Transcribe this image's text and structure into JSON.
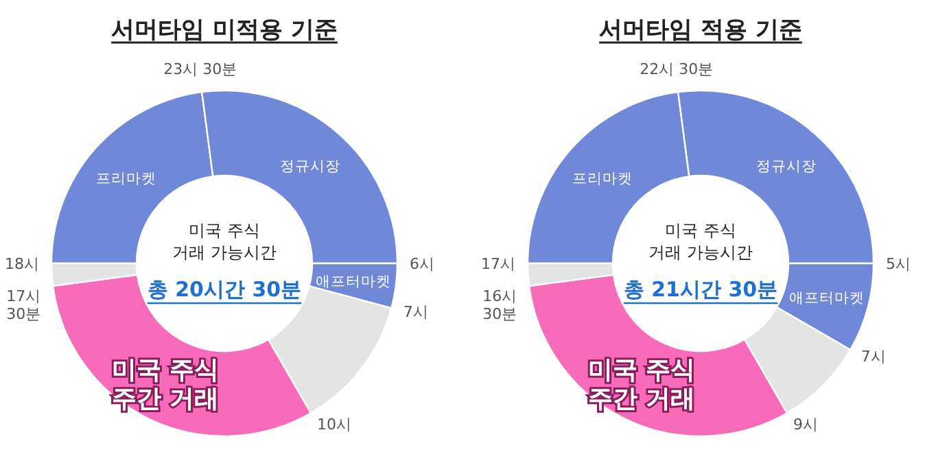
{
  "chart_data": [
    {
      "type": "donut",
      "title": "서머타임 미적용 기준",
      "categories": [
        "프리마켓",
        "정규시장",
        "애프터마켓",
        null,
        "미국 주식 주간 거래",
        null
      ],
      "values": [
        22.92,
        27.08,
        4.17,
        12.5,
        31.25,
        2.08
      ],
      "colors": [
        "#7088d8",
        "#7088d8",
        "#7088d8",
        "#e4e4e4",
        "#f76bb8",
        "#e4e4e4"
      ],
      "annotations": [
        "미국 주식 거래 가능시간",
        "총 20시간 30분",
        "23시 30분",
        "6시",
        "7시",
        "10시",
        "17시 30분",
        "18시"
      ]
    },
    {
      "type": "donut",
      "title": "서머타임 적용 기준",
      "categories": [
        "프리마켓",
        "정규시장",
        "애프터마켓",
        null,
        "미국 주식 주간 거래",
        null
      ],
      "values": [
        22.92,
        27.08,
        8.33,
        8.34,
        31.25,
        2.08
      ],
      "colors": [
        "#7088d8",
        "#7088d8",
        "#7088d8",
        "#e4e4e4",
        "#f76bb8",
        "#e4e4e4"
      ],
      "annotations": [
        "미국 주식 거래 가능시간",
        "총 21시간 30분",
        "22시 30분",
        "5시",
        "7시",
        "9시",
        "16시 30분",
        "17시"
      ]
    }
  ]
}
